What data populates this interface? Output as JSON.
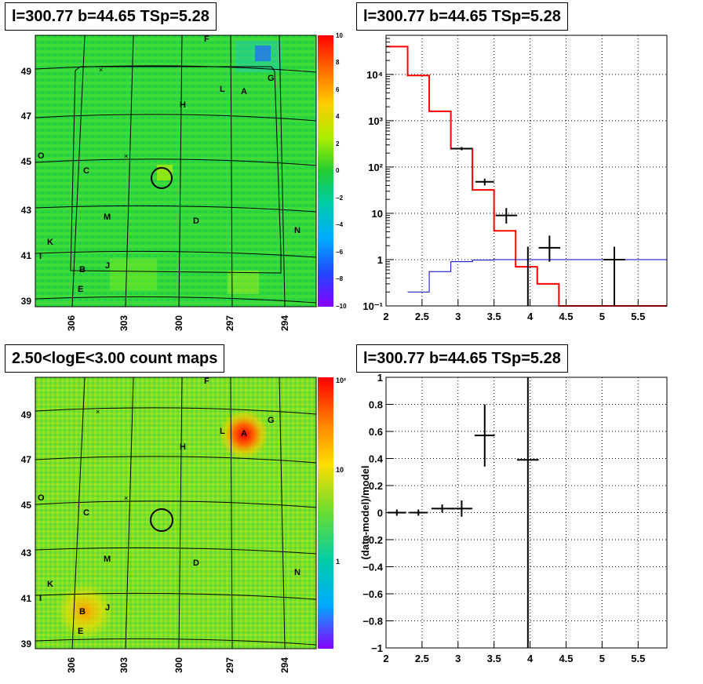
{
  "panels": {
    "top_left_title": "l=300.77 b=44.65 TSp=5.28",
    "top_right_title": "l=300.77 b=44.65 TSp=5.28",
    "bottom_left_title": "2.50<logE<3.00 count maps",
    "bottom_right_title": "l=300.77 b=44.65 TSp=5.28"
  },
  "sky_labels": {
    "lat": [
      "49",
      "47",
      "45",
      "43",
      "41",
      "39"
    ],
    "lon": [
      "306",
      "303",
      "300",
      "297",
      "294"
    ],
    "sources": [
      "F",
      "G",
      "L",
      "A",
      "H",
      "O",
      "C",
      "M",
      "D",
      "N",
      "K",
      "I",
      "B",
      "J",
      "E"
    ]
  },
  "colorbars": {
    "residual_ticks": [
      "10",
      "8",
      "6",
      "4",
      "2",
      "0",
      "−2",
      "−4",
      "−6",
      "−8",
      "−10"
    ],
    "counts_ticks": [
      "10²",
      "10",
      "1"
    ]
  },
  "chart_data": [
    {
      "type": "heatmap",
      "panel": "top-left",
      "title": "l=300.77 b=44.65 TSp=5.28",
      "xlabel": "",
      "ylabel": "",
      "x_ticks": [
        306,
        303,
        300,
        297,
        294
      ],
      "y_ticks": [
        49,
        47,
        45,
        43,
        41,
        39
      ],
      "zlim": [
        -10,
        10
      ],
      "colorbar_ticks": [
        10,
        8,
        6,
        4,
        2,
        0,
        -2,
        -4,
        -6,
        -8,
        -10
      ]
    },
    {
      "type": "line",
      "panel": "top-right",
      "title": "l=300.77 b=44.65 TSp=5.28",
      "xlabel": "",
      "ylabel": "",
      "xlim": [
        2,
        5.9
      ],
      "ylim": [
        0.1,
        70000
      ],
      "log_y": true,
      "grid": true,
      "x_ticks": [
        "2",
        "2.5",
        "3",
        "3.5",
        "4",
        "4.5",
        "5",
        "5.5"
      ],
      "y_ticks": [
        "10⁻¹",
        "1",
        "10",
        "10²",
        "10³",
        "10⁴"
      ],
      "series": [
        {
          "color": "#ff0000",
          "style": "step",
          "edges": [
            2.0,
            2.3,
            2.6,
            2.9,
            3.2,
            3.5,
            3.8,
            4.1,
            4.4,
            5.9
          ],
          "values": [
            40000,
            9500,
            1600,
            250,
            32,
            4.2,
            0.7,
            0.3,
            0.1
          ]
        },
        {
          "color": "#0000cc",
          "style": "step",
          "edges": [
            2.3,
            2.6,
            2.9,
            3.2,
            3.5,
            5.9
          ],
          "values": [
            0.2,
            0.55,
            0.9,
            0.98,
            1.0
          ]
        },
        {
          "color": "#000000",
          "style": "errorbar",
          "points": [
            {
              "x": 3.05,
              "y": 250,
              "xerr": 0.15,
              "ylo": 230,
              "yhi": 270
            },
            {
              "x": 3.37,
              "y": 48,
              "xerr": 0.13,
              "ylo": 40,
              "yhi": 56
            },
            {
              "x": 3.67,
              "y": 9,
              "xerr": 0.15,
              "ylo": 6,
              "yhi": 13
            },
            {
              "x": 3.97,
              "y": 1,
              "xerr": 0.0,
              "ylo": 0.1,
              "yhi": 1.9
            },
            {
              "x": 4.27,
              "y": 1.8,
              "xerr": 0.15,
              "ylo": 0.9,
              "yhi": 3.3
            },
            {
              "x": 5.17,
              "y": 1.0,
              "xerr": 0.15,
              "ylo": 0.1,
              "yhi": 1.9
            }
          ]
        }
      ]
    },
    {
      "type": "heatmap",
      "panel": "bottom-left",
      "title": "2.50<logE<3.00 count maps",
      "xlabel": "",
      "ylabel": "",
      "x_ticks": [
        306,
        303,
        300,
        297,
        294
      ],
      "y_ticks": [
        49,
        47,
        45,
        43,
        41,
        39
      ],
      "log_z": true,
      "colorbar_ticks": [
        "10²",
        "10",
        "1"
      ]
    },
    {
      "type": "scatter",
      "panel": "bottom-right",
      "title": "l=300.77 b=44.65 TSp=5.28",
      "xlabel": "",
      "ylabel": "(data-model)/model",
      "xlim": [
        2,
        5.9
      ],
      "ylim": [
        -1,
        1
      ],
      "grid": true,
      "x_ticks": [
        "2",
        "2.5",
        "3",
        "3.5",
        "4",
        "4.5",
        "5",
        "5.5"
      ],
      "y_ticks": [
        "1",
        "0.8",
        "0.6",
        "0.4",
        "0.2",
        "0",
        "−0.2",
        "−0.4",
        "−0.6",
        "−0.8",
        "−1"
      ],
      "points": [
        {
          "x": 2.15,
          "y": 0.0,
          "xerr": 0.0,
          "yerr": 0.0
        },
        {
          "x": 2.45,
          "y": 0.0,
          "xerr": 0.0,
          "yerr": 0.0
        },
        {
          "x": 2.78,
          "y": 0.03,
          "xerr": 0.15,
          "yerr": 0.03
        },
        {
          "x": 3.05,
          "y": 0.03,
          "xerr": 0.15,
          "yerr": 0.06
        },
        {
          "x": 3.37,
          "y": 0.57,
          "xerr": 0.14,
          "yerr": 0.23
        },
        {
          "x": 3.97,
          "y": 0.39,
          "xerr": 0.15,
          "yerr": 1.6
        }
      ]
    }
  ]
}
